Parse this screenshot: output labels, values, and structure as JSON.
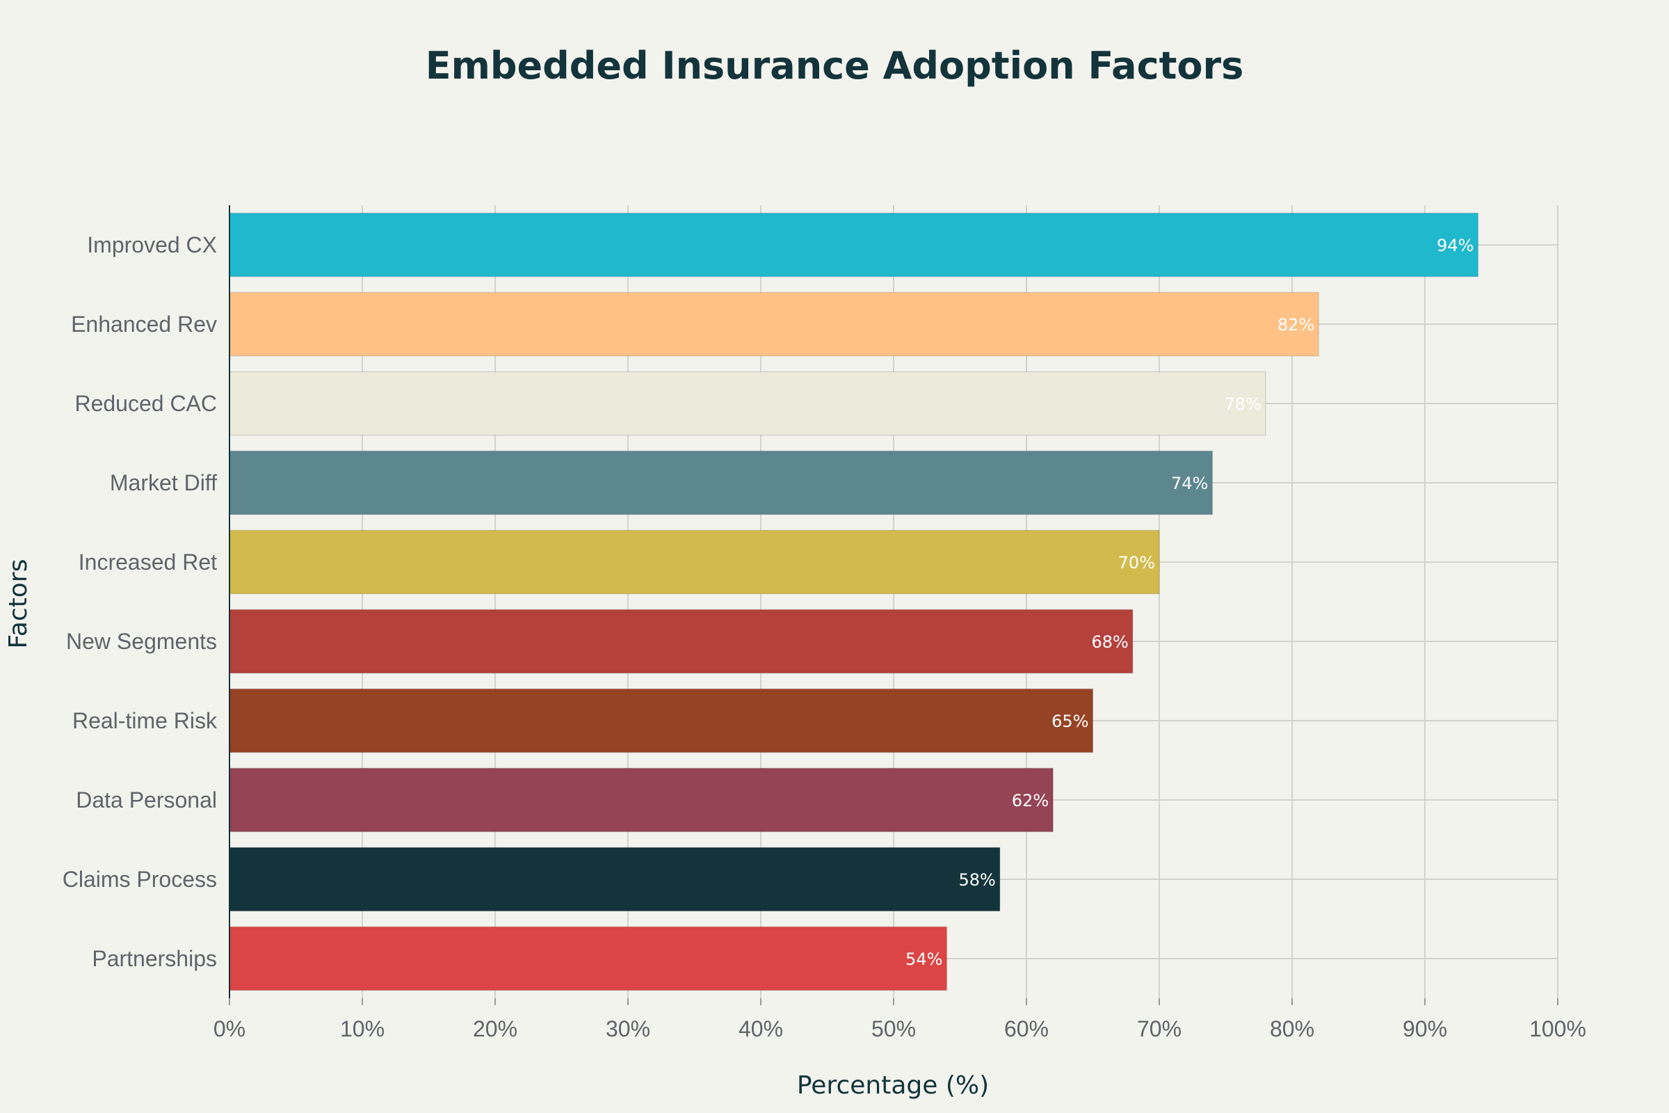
{
  "chart_data": {
    "type": "bar",
    "orientation": "horizontal",
    "title": "Embedded Insurance Adoption Factors",
    "xlabel": "Percentage (%)",
    "ylabel": "Factors",
    "xlim": [
      0,
      100
    ],
    "x_ticks": [
      "0%",
      "10%",
      "20%",
      "30%",
      "40%",
      "50%",
      "60%",
      "70%",
      "80%",
      "90%",
      "100%"
    ],
    "x_tick_values": [
      0,
      10,
      20,
      30,
      40,
      50,
      60,
      70,
      80,
      90,
      100
    ],
    "grid": true,
    "categories": [
      "Improved CX",
      "Enhanced Rev",
      "Reduced CAC",
      "Market Diff",
      "Increased Ret",
      "New Segments",
      "Real-time Risk",
      "Data Personal",
      "Claims Process",
      "Partnerships"
    ],
    "values": [
      94,
      82,
      78,
      74,
      70,
      68,
      65,
      62,
      58,
      54
    ],
    "value_labels": [
      "94%",
      "82%",
      "78%",
      "74%",
      "70%",
      "68%",
      "65%",
      "62%",
      "58%",
      "54%"
    ],
    "colors": [
      "#1fb8cd",
      "#ffc185",
      "#eceadb",
      "#5d878f",
      "#d2ba4c",
      "#b4413c",
      "#964325",
      "#944454",
      "#13343b",
      "#db4545"
    ]
  },
  "background_color": "#f3f3ee"
}
